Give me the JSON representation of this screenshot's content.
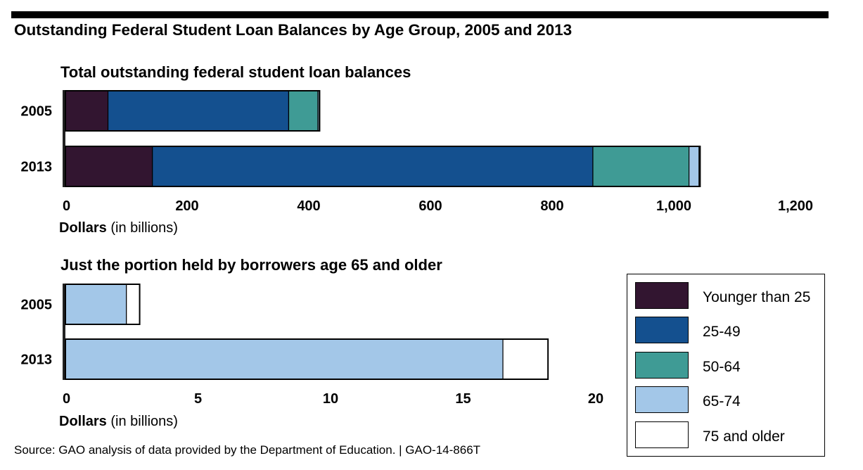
{
  "title": "Outstanding Federal Student Loan Balances by Age Group, 2005 and 2013",
  "source": "Source: GAO analysis of data provided by the Department of Education.  |  GAO-14-866T",
  "legend": {
    "items": [
      {
        "label": "Younger than 25",
        "color": "#321530"
      },
      {
        "label": "25-49",
        "color": "#14508f"
      },
      {
        "label": "50-64",
        "color": "#3f9b95"
      },
      {
        "label": "65-74",
        "color": "#a3c7e8"
      },
      {
        "label": "75 and older",
        "color": "#ffffff"
      }
    ]
  },
  "chart_data": [
    {
      "type": "bar",
      "orientation": "horizontal",
      "stacked": true,
      "title": "Total outstanding federal student loan balances",
      "xlabel_bold": "Dollars",
      "xlabel_rest": " (in billions)",
      "xlim": [
        0,
        1200
      ],
      "xticks": [
        0,
        200,
        400,
        600,
        800,
        1000,
        1200
      ],
      "xtick_labels": [
        "0",
        "200",
        "400",
        "600",
        "800",
        "1,000",
        "1,200"
      ],
      "categories": [
        "2005",
        "2013"
      ],
      "series": [
        {
          "name": "Younger than 25",
          "color": "#321530",
          "values": [
            70,
            143
          ]
        },
        {
          "name": "25-49",
          "color": "#14508f",
          "values": [
            297,
            724
          ]
        },
        {
          "name": "50-64",
          "color": "#3f9b95",
          "values": [
            48,
            158
          ]
        },
        {
          "name": "65-74",
          "color": "#a3c7e8",
          "values": [
            2.3,
            16.5
          ]
        },
        {
          "name": "75 and older",
          "color": "#ffffff",
          "values": [
            0.5,
            1.7
          ]
        }
      ]
    },
    {
      "type": "bar",
      "orientation": "horizontal",
      "stacked": true,
      "title": "Just the portion held by borrowers age 65 and older",
      "xlabel_bold": "Dollars",
      "xlabel_rest": " (in billions)",
      "xlim": [
        0,
        20
      ],
      "xticks": [
        0,
        5,
        10,
        15,
        20
      ],
      "xtick_labels": [
        "0",
        "5",
        "10",
        "15",
        "20"
      ],
      "categories": [
        "2005",
        "2013"
      ],
      "series": [
        {
          "name": "65-74",
          "color": "#a3c7e8",
          "values": [
            2.3,
            16.5
          ]
        },
        {
          "name": "75 and older",
          "color": "#ffffff",
          "values": [
            0.5,
            1.7
          ]
        }
      ]
    }
  ]
}
